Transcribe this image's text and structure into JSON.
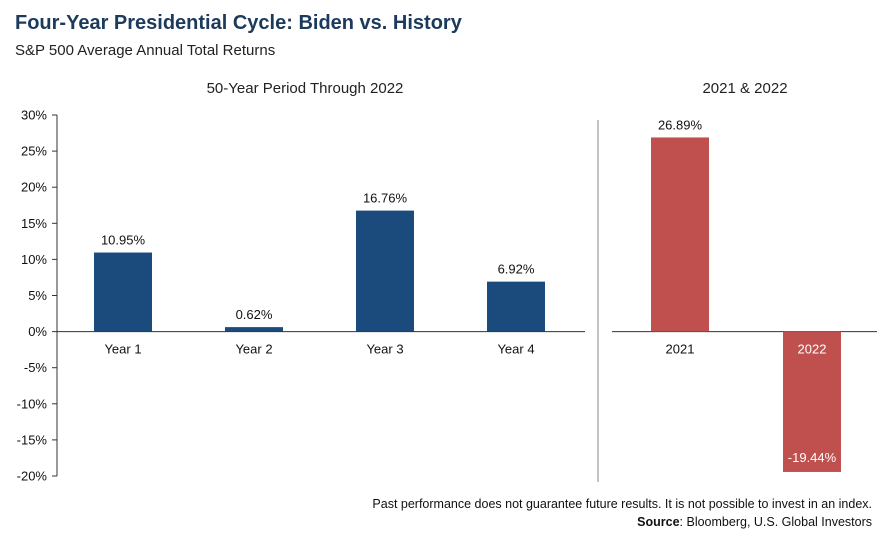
{
  "title": "Four-Year Presidential Cycle: Biden vs. History",
  "subtitle": "S&P 500 Average Annual Total Returns",
  "colors": {
    "history_bar": "#1b4a7c",
    "biden_bar": "#c0504d",
    "axis": "#333333"
  },
  "chart_data": [
    {
      "type": "bar",
      "title": "50-Year Period Through 2022",
      "categories": [
        "Year 1",
        "Year 2",
        "Year 3",
        "Year 4"
      ],
      "values": [
        10.95,
        0.62,
        16.76,
        6.92
      ],
      "labels": [
        "10.95%",
        "0.62%",
        "16.76%",
        "6.92%"
      ],
      "ylim": [
        -20,
        30
      ],
      "yticks": [
        "30%",
        "25%",
        "20%",
        "15%",
        "10%",
        "5%",
        "0%",
        "-5%",
        "-10%",
        "-15%",
        "-20%"
      ],
      "grid": false
    },
    {
      "type": "bar",
      "title": "2021 & 2022",
      "categories": [
        "2021",
        "2022"
      ],
      "values": [
        26.89,
        -19.44
      ],
      "labels": [
        "26.89%",
        "-19.44%"
      ],
      "ylim": [
        -20,
        30
      ],
      "grid": false
    }
  ],
  "footer": {
    "disclaimer": "Past performance does not guarantee future results. It is not possible to invest in an index.",
    "source_label": "Source",
    "source_text": ": Bloomberg, U.S. Global Investors"
  }
}
